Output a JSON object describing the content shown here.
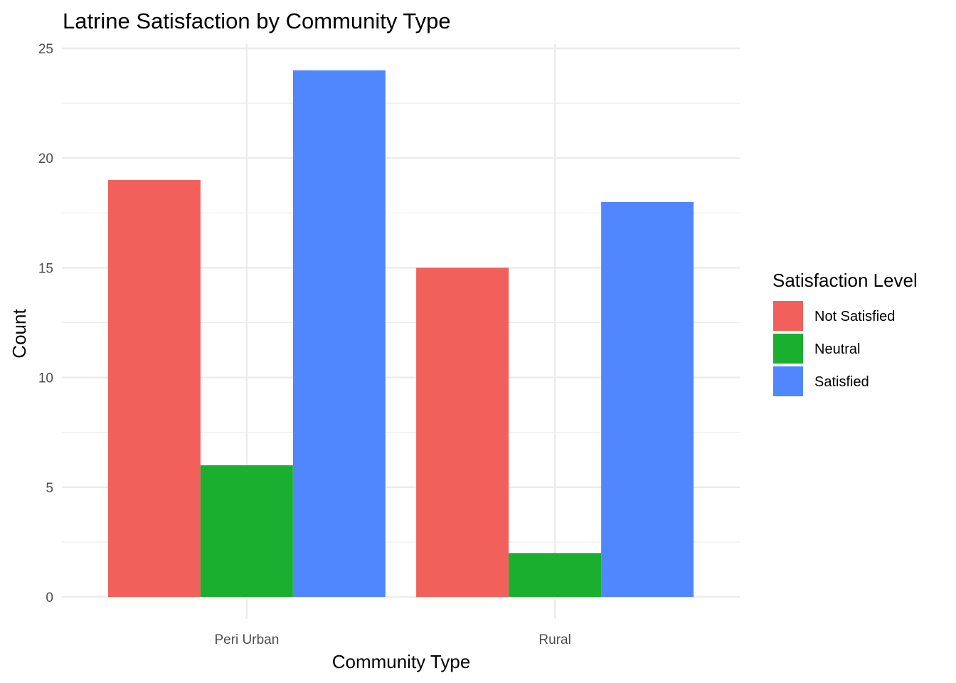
{
  "chart_data": {
    "type": "bar",
    "title": "Latrine Satisfaction by Community Type",
    "xlabel": "Community Type",
    "ylabel": "Count",
    "categories": [
      "Peri Urban",
      "Rural"
    ],
    "series": [
      {
        "name": "Not Satisfied",
        "color": "#F2605B",
        "values": [
          19,
          15
        ]
      },
      {
        "name": "Neutral",
        "color": "#1AAF2F",
        "values": [
          6,
          2
        ]
      },
      {
        "name": "Satisfied",
        "color": "#5087FF",
        "values": [
          24,
          18
        ]
      }
    ],
    "ylim": [
      0,
      25
    ],
    "yticks": [
      0,
      5,
      10,
      15,
      20,
      25
    ],
    "grid": true,
    "legend": {
      "title": "Satisfaction Level",
      "position": "right"
    },
    "bar_mode": "grouped"
  }
}
